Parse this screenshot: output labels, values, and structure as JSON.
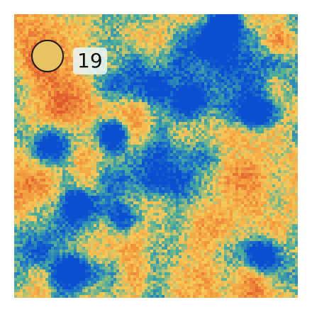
{
  "game": {
    "score": "19"
  },
  "colors": {
    "token_fill": "#E8C363",
    "token_border": "#1B1B1B",
    "terrain_red": "#E0592C",
    "terrain_orange": "#F3A041",
    "terrain_yellow": "#F6CB5A",
    "terrain_teal": "#4AAE9A",
    "terrain_blue": "#1E72C8",
    "terrain_deep_blue": "#0B4FD0"
  }
}
